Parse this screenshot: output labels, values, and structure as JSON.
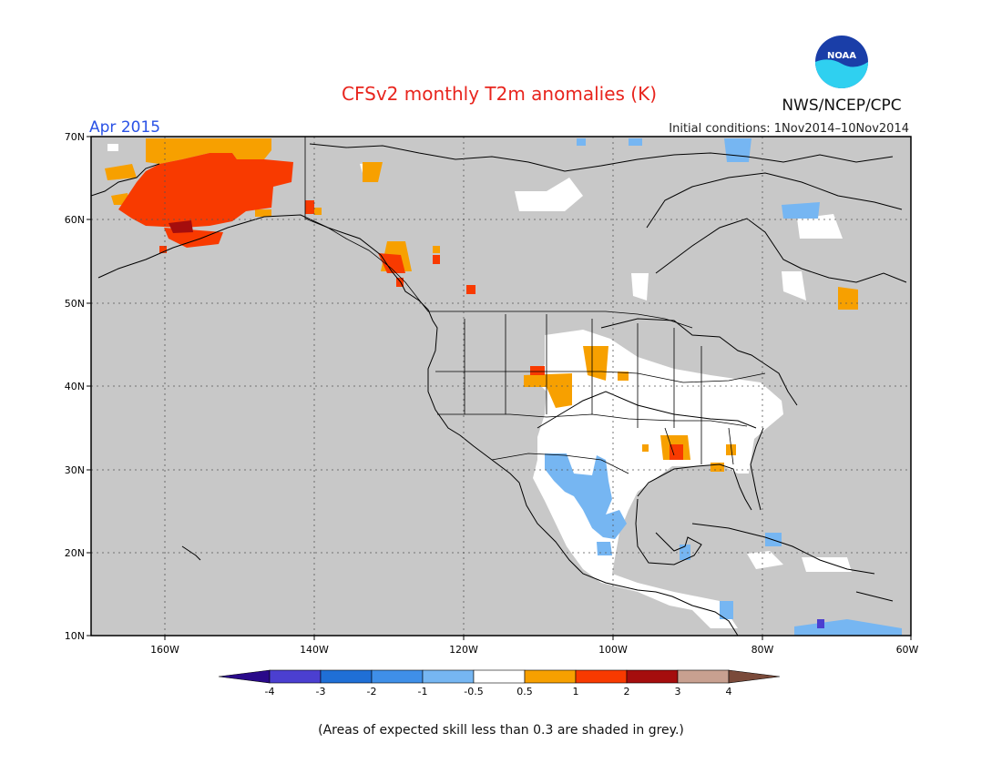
{
  "title": "CFSv2 monthly T2m anomalies (K)",
  "agency": "NWS/NCEP/CPC",
  "logo_text": "NOAA",
  "valid_month": "Apr 2015",
  "initial_conditions": "Initial conditions: 1Nov2014–10Nov2014",
  "footnote": "(Areas of expected skill less than 0.3 are shaded in grey.)",
  "latitude_labels": [
    "70N",
    "60N",
    "50N",
    "40N",
    "30N",
    "20N",
    "10N"
  ],
  "longitude_labels": [
    "160W",
    "140W",
    "120W",
    "100W",
    "80W",
    "60W"
  ],
  "colorbar": {
    "tick_labels": [
      "-4",
      "-3",
      "-2",
      "-1",
      "-0.5",
      "0.5",
      "1",
      "2",
      "3",
      "4"
    ],
    "colors": [
      "#2a0a8a",
      "#4b3fd0",
      "#1f6fd6",
      "#3f8fe8",
      "#76b6f2",
      "#ffffff",
      "#f7a000",
      "#f83a00",
      "#a50d0d",
      "#c8a090",
      "#7a4a3a"
    ]
  },
  "colors": {
    "title": "#e8251e",
    "month": "#2a52e6",
    "low_skill_grey": "#c8c8c8"
  }
}
